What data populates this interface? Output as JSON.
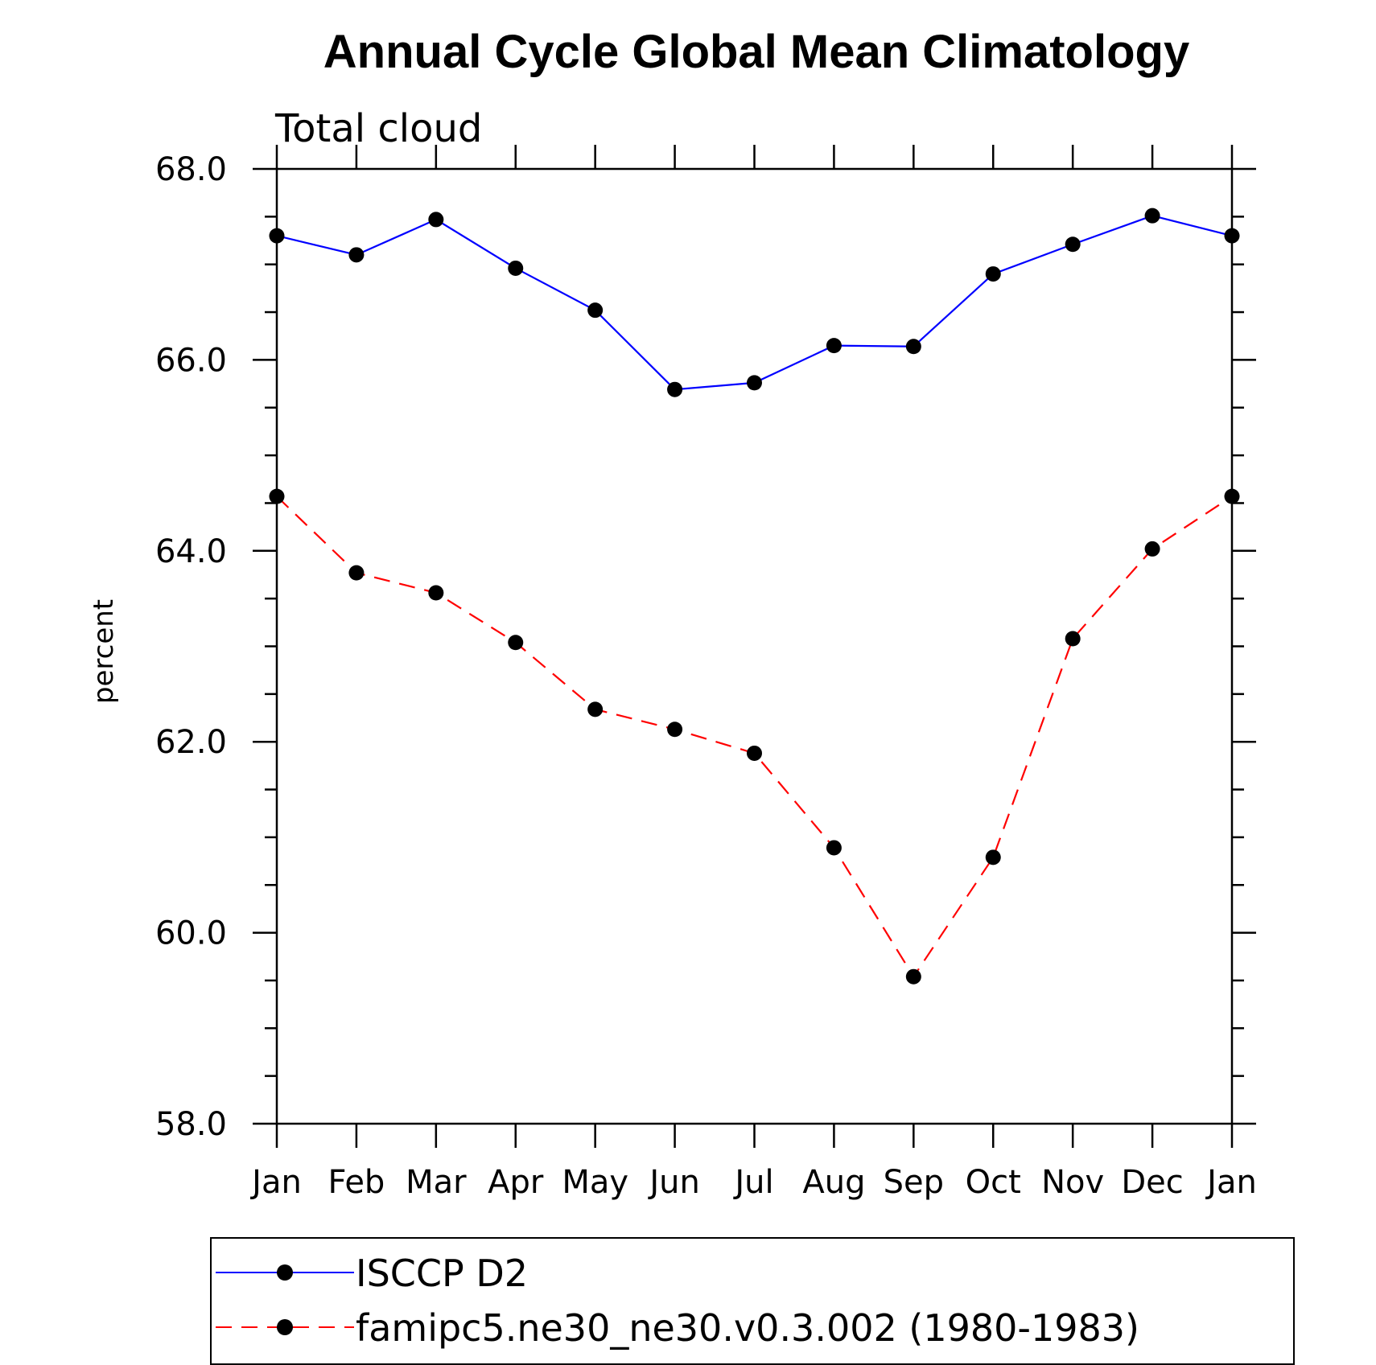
{
  "chart_data": {
    "type": "line",
    "title": "Annual Cycle Global Mean Climatology",
    "subtitle": "Total cloud",
    "xlabel": "",
    "ylabel": "percent",
    "categories": [
      "Jan",
      "Feb",
      "Mar",
      "Apr",
      "May",
      "Jun",
      "Jul",
      "Aug",
      "Sep",
      "Oct",
      "Nov",
      "Dec",
      "Jan"
    ],
    "ylim": [
      58.0,
      68.0
    ],
    "yticks": [
      "58.0",
      "60.0",
      "62.0",
      "64.0",
      "66.0",
      "68.0"
    ],
    "grid": false,
    "legend_position": "bottom",
    "series": [
      {
        "name": "ISCCP D2",
        "color": "#0000ff",
        "style": "solid",
        "marker": "filled-circle",
        "values": [
          67.3,
          67.1,
          67.47,
          66.96,
          66.52,
          65.69,
          65.76,
          66.15,
          66.14,
          66.9,
          67.21,
          67.51,
          67.3
        ]
      },
      {
        "name": "famipc5.ne30_ne30.v0.3.002 (1980-1983)",
        "color": "#ff0000",
        "style": "dashed",
        "marker": "filled-circle",
        "values": [
          64.57,
          63.77,
          63.56,
          63.04,
          62.34,
          62.13,
          61.88,
          60.89,
          59.54,
          60.79,
          63.08,
          64.02,
          64.57
        ]
      }
    ]
  }
}
